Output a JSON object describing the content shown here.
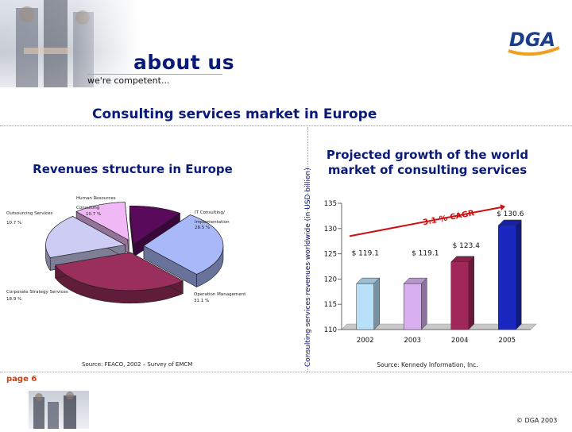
{
  "header": {
    "title": "about us",
    "subtitle": "we're competent...",
    "logo_text": "DGA"
  },
  "section_title": "Consulting services market in Europe",
  "footer": {
    "page": "page 6",
    "copyright": "© DGA 2003"
  },
  "colors": {
    "brand_blue": "#0a1a78",
    "logo_orange": "#f0a020",
    "page_red": "#d23c0a",
    "arrow_red": "#d01010"
  },
  "chart_data": [
    {
      "type": "pie",
      "title": "Revenues structure in Europe",
      "source": "Source: FEACO, 2002 – Survey of EMCM",
      "slices": [
        {
          "label_lines": [
            "Human Resources",
            "Consulting"
          ],
          "value": 10.7,
          "value_label": "10.7 %",
          "color": "#5a0a5a"
        },
        {
          "label_lines": [
            "IT Consulting/",
            "Implementation"
          ],
          "value": 28.5,
          "value_label": "28.5 %",
          "color": "#a8b8f8"
        },
        {
          "label_lines": [
            "Operation Management"
          ],
          "value": 31.1,
          "value_label": "31.1 %",
          "color": "#9a2e5c"
        },
        {
          "label_lines": [
            "Corporate Strategy Services"
          ],
          "value": 18.9,
          "value_label": "18.9 %",
          "color": "#ccccf4"
        },
        {
          "label_lines": [
            "Outsourcing Services"
          ],
          "value": 10.7,
          "value_label": "10.7 %",
          "color": "#f0b8f4"
        }
      ]
    },
    {
      "type": "bar",
      "title": "Projected growth of the world market of consulting services",
      "ylabel": "Consulting services revenues worldwide (in USD billion)",
      "source": "Source: Kennedy Information, Inc.",
      "categories": [
        "2002",
        "2003",
        "2004",
        "2005"
      ],
      "values": [
        119.1,
        119.1,
        123.4,
        130.6
      ],
      "value_labels": [
        "$ 119.1",
        "$ 119.1",
        "$ 123.4",
        "$ 130.6"
      ],
      "colors": [
        "#b8e0f8",
        "#d8b0f0",
        "#a02858",
        "#1a28c0"
      ],
      "ylim": [
        110,
        135
      ],
      "yticks": [
        110,
        115,
        120,
        125,
        130,
        135
      ],
      "annotation": "3.1 % CAGR"
    }
  ]
}
